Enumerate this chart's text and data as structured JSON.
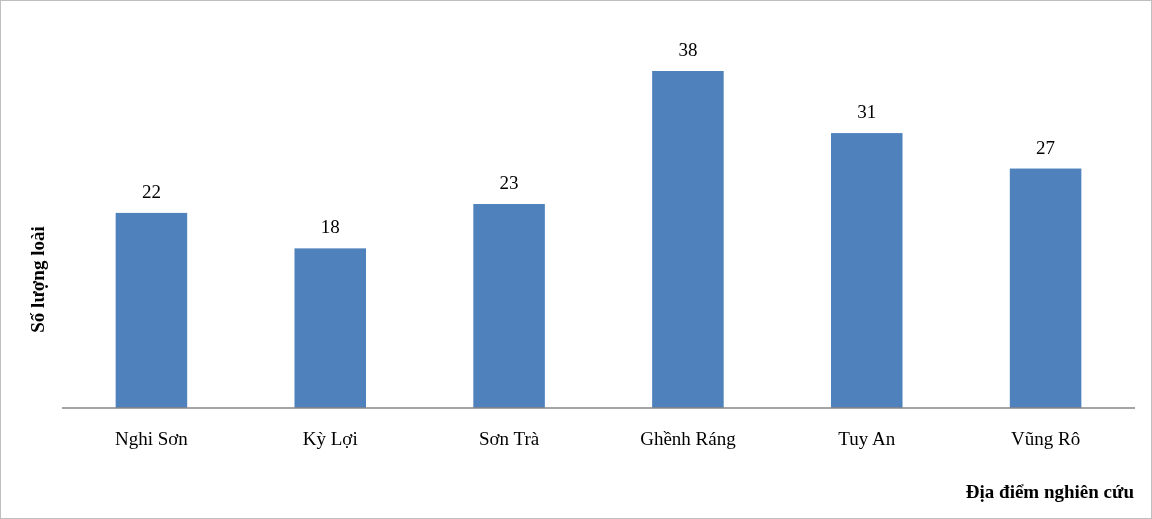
{
  "chart_data": {
    "type": "bar",
    "xlabel": "Địa điểm nghiên cứu",
    "ylabel": "Số lượng loài",
    "categories": [
      "Nghi Sơn",
      "Kỳ Lợi",
      "Sơn Trà",
      "Ghềnh Ráng",
      "Tuy An",
      "Vũng Rô"
    ],
    "values": [
      22,
      18,
      23,
      38,
      31,
      27
    ],
    "color": "#4f81bd",
    "data_labels": true
  }
}
